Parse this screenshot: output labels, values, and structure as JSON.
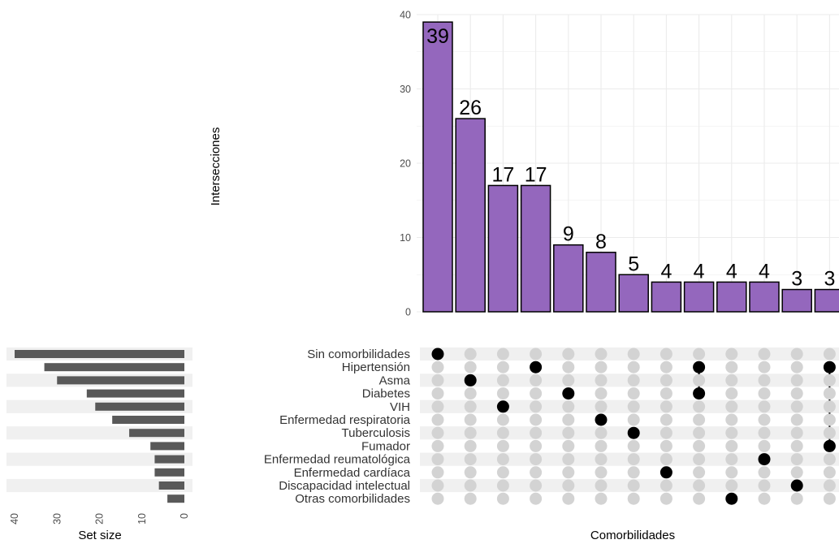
{
  "chart_data": {
    "type": "upset",
    "intersections": {
      "ylabel": "Intersecciones",
      "ylim": [
        0,
        40
      ],
      "yticks": [
        0,
        10,
        20,
        30,
        40
      ],
      "values": [
        39,
        26,
        17,
        17,
        9,
        8,
        5,
        4,
        4,
        4,
        4,
        3,
        3
      ],
      "bar_color": "#9467bd",
      "members": [
        [
          "Sin comorbilidades"
        ],
        [
          "Asma"
        ],
        [
          "VIH"
        ],
        [
          "Hipertensión"
        ],
        [
          "Diabetes"
        ],
        [
          "Enfermedad respiratoria"
        ],
        [
          "Tuberculosis"
        ],
        [
          "Enfermedad cardíaca"
        ],
        [
          "Hipertensión",
          "Diabetes"
        ],
        [
          "Otras comorbilidades"
        ],
        [
          "Enfermedad reumatológica"
        ],
        [
          "Discapacidad intelectual"
        ],
        [
          "Hipertensión",
          "Fumador"
        ]
      ]
    },
    "sets": {
      "names": [
        "Sin comorbilidades",
        "Hipertensión",
        "Asma",
        "Diabetes",
        "VIH",
        "Enfermedad respiratoria",
        "Tuberculosis",
        "Fumador",
        "Enfermedad reumatológica",
        "Enfermedad cardíaca",
        "Discapacidad intelectual",
        "Otras comorbilidades"
      ],
      "sizes": [
        40,
        33,
        30,
        23,
        21,
        17,
        13,
        8,
        7,
        7,
        6,
        4
      ],
      "xlabel": "Set size",
      "xticks": [
        40,
        30,
        20,
        10,
        0
      ],
      "xlim": [
        0,
        40
      ],
      "bar_color": "#595959"
    },
    "matrix_xlabel": "Comorbilidades"
  }
}
